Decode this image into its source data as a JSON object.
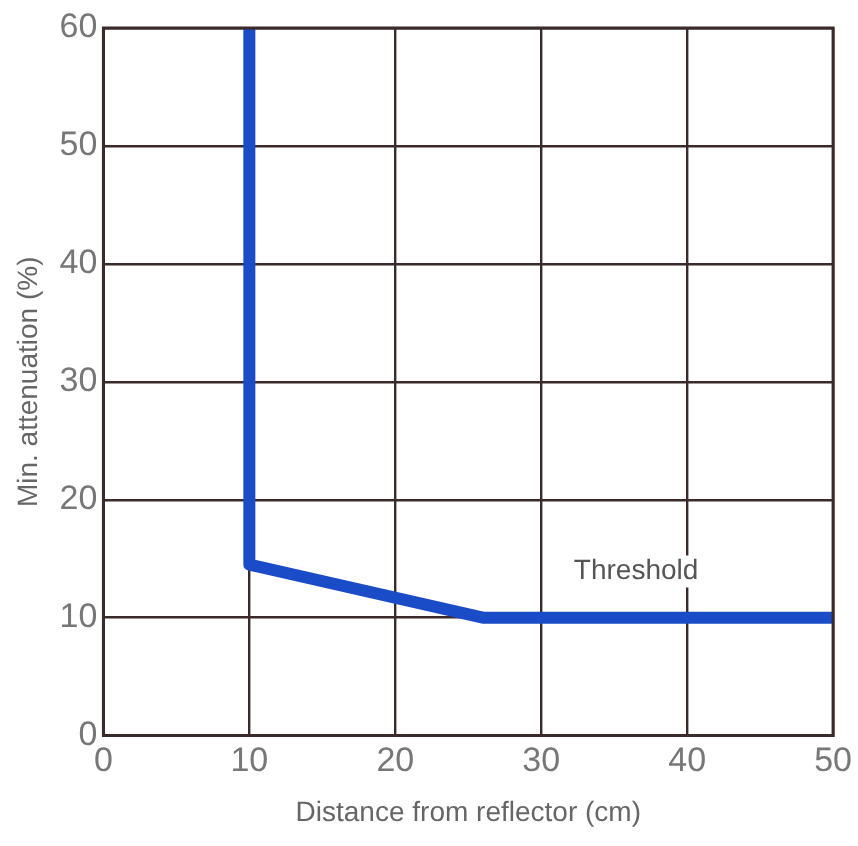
{
  "chart_data": {
    "type": "line",
    "xlabel": "Distance from reflector (cm)",
    "ylabel": "Min. attenuation (%)",
    "series": [
      {
        "color": "#1a4cc8",
        "x": [
          10,
          10,
          26,
          50
        ],
        "values": [
          60,
          14.5,
          10,
          10
        ]
      }
    ],
    "xlim": [
      0,
      50
    ],
    "xticks": [
      0,
      10,
      20,
      30,
      40,
      50
    ],
    "ylim": [
      0,
      60
    ],
    "yticks": [
      0,
      10,
      20,
      30,
      40,
      50,
      60
    ],
    "grid": true,
    "legend": false,
    "marker": "none",
    "line_style": "solid",
    "annotations": [
      "Threshold"
    ]
  }
}
